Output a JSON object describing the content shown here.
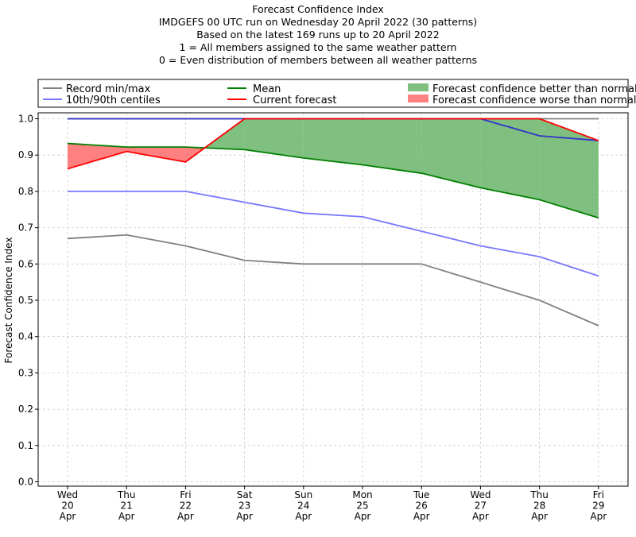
{
  "title_lines": [
    "Forecast Confidence Index",
    "IMDGEFS 00 UTC run on Wednesday 20 April 2022 (30 patterns)",
    "Based on the latest 169 runs up to 20 April 2022",
    "1 = All members assigned to the same weather pattern",
    "0 = Even distribution of members between all weather patterns"
  ],
  "legend": {
    "record": "Record min/max",
    "centiles": "10th/90th centiles",
    "mean": "Mean",
    "current": "Current forecast",
    "better": "Forecast confidence better than normal",
    "worse": "Forecast confidence worse than normal"
  },
  "colors": {
    "record": "#808080",
    "centiles": "#7777ff",
    "mean": "#008000",
    "current": "#ff0000",
    "better": "#7fbf7f",
    "worse": "#ff8080",
    "max_blue": "#3333cc"
  },
  "chart_data": {
    "type": "line",
    "ylabel": "Forecast Confidence Index",
    "ylim": [
      0,
      1.0
    ],
    "yticks": [
      "0.0",
      "0.1",
      "0.2",
      "0.3",
      "0.4",
      "0.5",
      "0.6",
      "0.7",
      "0.8",
      "0.9",
      "1.0"
    ],
    "grid": true,
    "legend_position": "top",
    "categories": [
      [
        "Wed",
        "20",
        "Apr"
      ],
      [
        "Thu",
        "21",
        "Apr"
      ],
      [
        "Fri",
        "22",
        "Apr"
      ],
      [
        "Sat",
        "23",
        "Apr"
      ],
      [
        "Sun",
        "24",
        "Apr"
      ],
      [
        "Mon",
        "25",
        "Apr"
      ],
      [
        "Tue",
        "26",
        "Apr"
      ],
      [
        "Wed",
        "27",
        "Apr"
      ],
      [
        "Thu",
        "28",
        "Apr"
      ],
      [
        "Fri",
        "29",
        "Apr"
      ]
    ],
    "series": [
      {
        "name": "Record min/max",
        "role": "record_min",
        "values": [
          0.67,
          0.68,
          0.65,
          0.61,
          0.6,
          0.6,
          0.6,
          0.55,
          0.5,
          0.43
        ]
      },
      {
        "name": "Record min/max",
        "role": "record_max",
        "values": [
          1.0,
          1.0,
          1.0,
          1.0,
          1.0,
          1.0,
          1.0,
          1.0,
          1.0,
          1.0
        ]
      },
      {
        "name": "10th/90th centiles",
        "role": "centile_10",
        "values": [
          0.8,
          0.8,
          0.8,
          0.77,
          0.74,
          0.73,
          0.69,
          0.65,
          0.62,
          0.567
        ]
      },
      {
        "name": "10th/90th centiles",
        "role": "centile_90",
        "values": [
          1.0,
          1.0,
          1.0,
          1.0,
          1.0,
          1.0,
          1.0,
          1.0,
          0.953,
          0.94
        ]
      },
      {
        "name": "Mean",
        "role": "mean",
        "values": [
          0.932,
          0.922,
          0.922,
          0.915,
          0.892,
          0.873,
          0.85,
          0.81,
          0.777,
          0.727
        ]
      },
      {
        "name": "Current forecast",
        "role": "current",
        "values": [
          0.862,
          0.91,
          0.881,
          1.0,
          1.0,
          1.0,
          1.0,
          1.0,
          1.0,
          0.94
        ]
      }
    ]
  }
}
